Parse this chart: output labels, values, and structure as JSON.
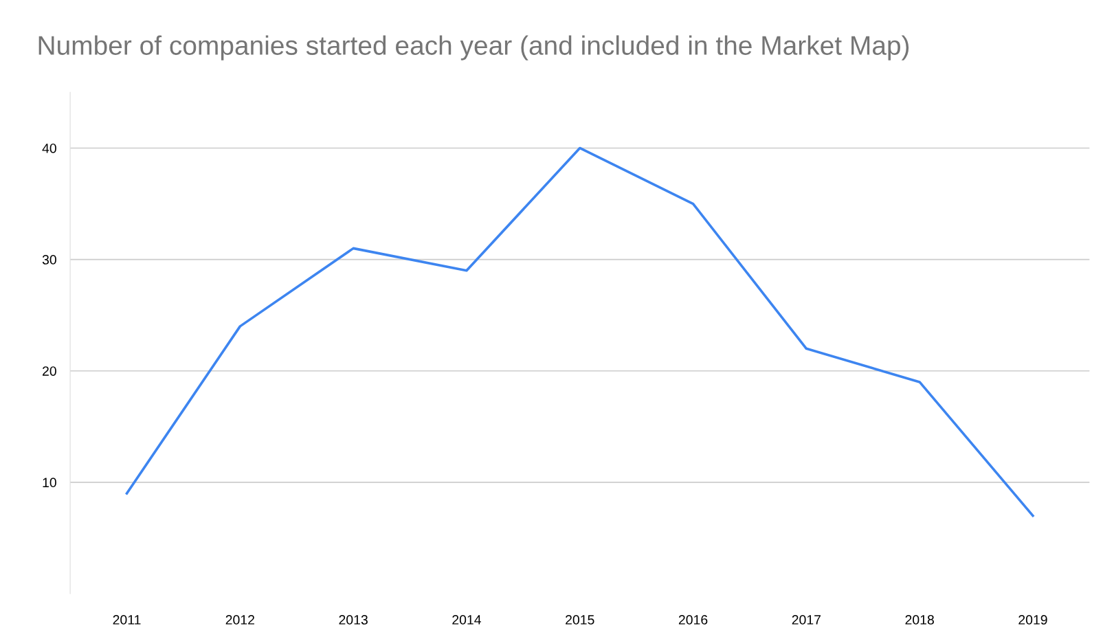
{
  "chart_data": {
    "type": "line",
    "title": "Number of companies started each year (and included in the Market Map)",
    "categories": [
      "2011",
      "2012",
      "2013",
      "2014",
      "2015",
      "2016",
      "2017",
      "2018",
      "2019"
    ],
    "series": [
      {
        "color": "#3d85f0",
        "values": [
          9,
          24,
          31,
          29,
          40,
          35,
          22,
          19,
          7
        ]
      }
    ],
    "ylim": [
      0,
      45
    ],
    "yticks": [
      10,
      20,
      30,
      40
    ],
    "grid": "y",
    "legend": false,
    "marker": "none",
    "line_style": "solid"
  }
}
